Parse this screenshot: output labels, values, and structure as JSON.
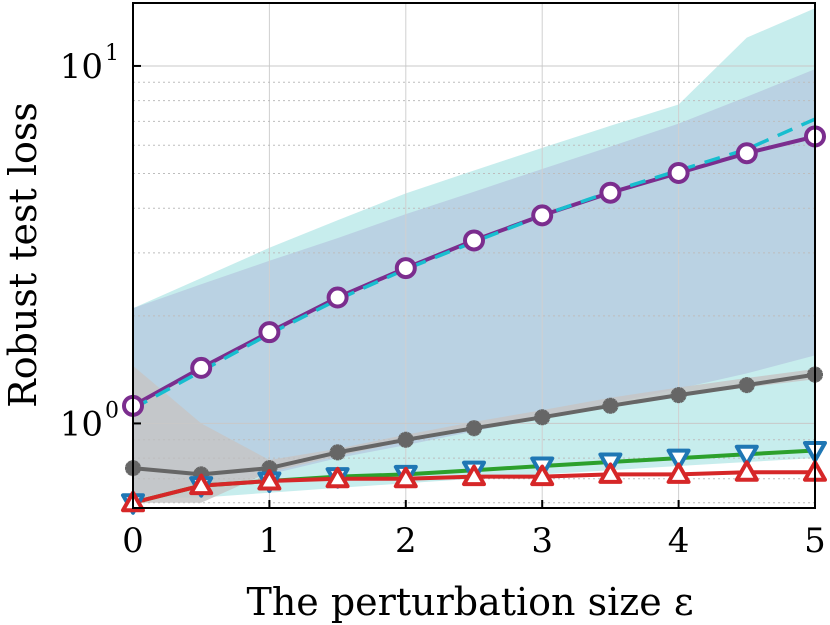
{
  "chart_data": {
    "type": "line",
    "title": "",
    "xlabel": "The perturbation size ε",
    "ylabel": "Robust test loss",
    "yscale": "log",
    "xlim": [
      0,
      5
    ],
    "ylim": [
      0.58,
      15
    ],
    "x_ticks": [
      {
        "value": 0,
        "label": "0"
      },
      {
        "value": 1,
        "label": "1"
      },
      {
        "value": 2,
        "label": "2"
      },
      {
        "value": 3,
        "label": "3"
      },
      {
        "value": 4,
        "label": "4"
      },
      {
        "value": 5,
        "label": "5"
      }
    ],
    "y_ticks": [
      {
        "value": 1,
        "base": "10",
        "exp": "0"
      },
      {
        "value": 10,
        "base": "10",
        "exp": "1"
      }
    ],
    "grid": true,
    "x": [
      0,
      0.5,
      1,
      1.5,
      2,
      2.5,
      3,
      3.5,
      4,
      4.5,
      5
    ],
    "bands": [
      {
        "name": "cyan-band",
        "color": "#bdeaea",
        "upper": [
          2.1,
          2.55,
          3.1,
          3.7,
          4.4,
          5.1,
          5.9,
          6.8,
          7.8,
          12,
          14.5
        ],
        "lower": [
          0.62,
          0.62,
          0.64,
          0.66,
          0.68,
          0.7,
          0.72,
          0.74,
          0.76,
          0.78,
          0.8
        ]
      },
      {
        "name": "blue-band",
        "color": "#b7cde0",
        "upper": [
          2.1,
          2.45,
          2.85,
          3.3,
          3.85,
          4.45,
          5.15,
          5.95,
          6.9,
          8.2,
          9.8
        ],
        "lower": [
          0.62,
          0.66,
          0.72,
          0.8,
          0.87,
          0.95,
          1.04,
          1.14,
          1.25,
          1.38,
          1.55
        ]
      },
      {
        "name": "gray-band",
        "color": "#c6c6c6",
        "upper": [
          1.45,
          1.0,
          0.79,
          0.85,
          0.93,
          1.01,
          1.09,
          1.18,
          1.26,
          1.34,
          1.42
        ],
        "lower": [
          0.6,
          0.6,
          0.73,
          0.81,
          0.89,
          0.96,
          1.03,
          1.12,
          1.19,
          1.26,
          1.33
        ]
      }
    ],
    "series": [
      {
        "name": "gray-star",
        "color": "#666666",
        "marker": "star",
        "values": [
          0.75,
          0.72,
          0.75,
          0.83,
          0.9,
          0.97,
          1.04,
          1.12,
          1.2,
          1.28,
          1.37
        ]
      },
      {
        "name": "green-down-triangle",
        "color": "#2ca02c",
        "marker_color": "#1f77b4",
        "marker": "tri-down",
        "values": [
          0.6,
          0.67,
          0.69,
          0.71,
          0.72,
          0.74,
          0.76,
          0.78,
          0.8,
          0.82,
          0.84
        ]
      },
      {
        "name": "red-triangle",
        "color": "#d62728",
        "marker": "tri-up",
        "values": [
          0.6,
          0.67,
          0.69,
          0.7,
          0.7,
          0.71,
          0.71,
          0.72,
          0.72,
          0.73,
          0.73
        ]
      },
      {
        "name": "cyan-dashed",
        "color": "#17becf",
        "marker": "none",
        "dashed": true,
        "values": [
          1.1,
          1.4,
          1.78,
          2.22,
          2.7,
          3.22,
          3.82,
          4.45,
          5.1,
          5.85,
          7.1
        ]
      },
      {
        "name": "purple-circle",
        "color": "#7b2d8e",
        "marker": "circle",
        "values": [
          1.12,
          1.43,
          1.8,
          2.25,
          2.72,
          3.25,
          3.82,
          4.42,
          5.02,
          5.7,
          6.35
        ]
      }
    ]
  }
}
